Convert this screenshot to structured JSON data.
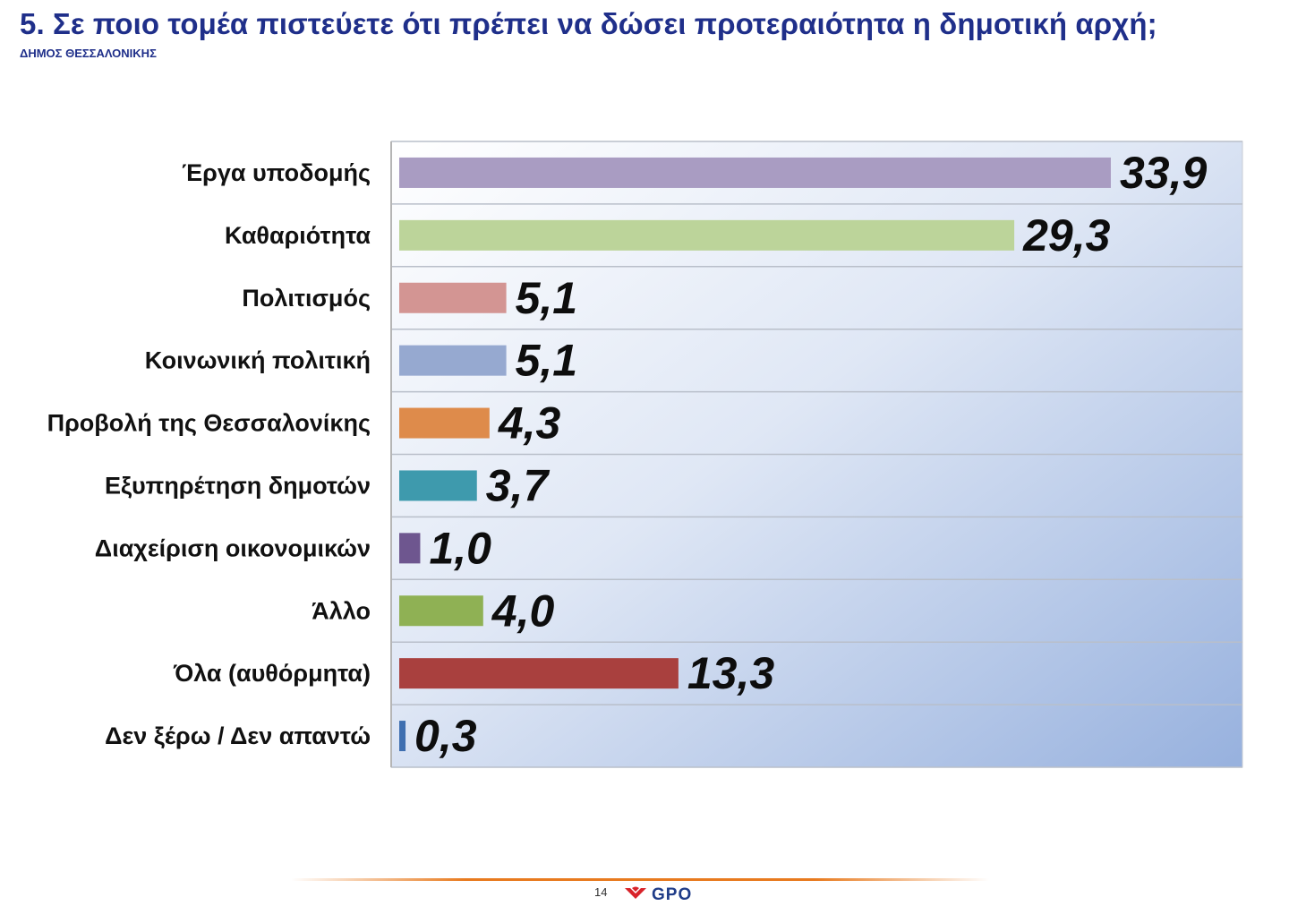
{
  "header": {
    "title": "5. Σε ποιο τομέα πιστεύετε ότι πρέπει να δώσει προτεραιότητα η δημοτική αρχή;",
    "subtitle": "ΔΗΜΟΣ ΘΕΣΣΑΛΟΝΙΚΗΣ"
  },
  "chart_data": {
    "type": "bar",
    "orientation": "horizontal",
    "categories": [
      "Έργα υποδομής",
      "Καθαριότητα",
      "Πολιτισμός",
      "Κοινωνική πολιτική",
      "Προβολή της Θεσσαλονίκης",
      "Εξυπηρέτηση δημοτών",
      "Διαχείριση οικονομικών",
      "Άλλο",
      "Όλα (αυθόρμητα)",
      "Δεν ξέρω / Δεν απαντώ"
    ],
    "values": [
      33.9,
      29.3,
      5.1,
      5.1,
      4.3,
      3.7,
      1.0,
      4.0,
      13.3,
      0.3
    ],
    "value_labels": [
      "33,9",
      "29,3",
      "5,1",
      "5,1",
      "4,3",
      "3,7",
      "1,0",
      "4,0",
      "13,3",
      "0,3"
    ],
    "bar_colors": [
      "#a99cc2",
      "#bcd49a",
      "#d39593",
      "#96a9d0",
      "#de8b4b",
      "#3e9aad",
      "#6e568f",
      "#8fb154",
      "#a9403e",
      "#3f6fb0"
    ],
    "xlim": [
      0,
      35
    ],
    "grid": true,
    "legend": "none",
    "title": "",
    "xlabel": "",
    "ylabel": ""
  },
  "footer": {
    "page_number": "14",
    "logo": "GPO"
  }
}
